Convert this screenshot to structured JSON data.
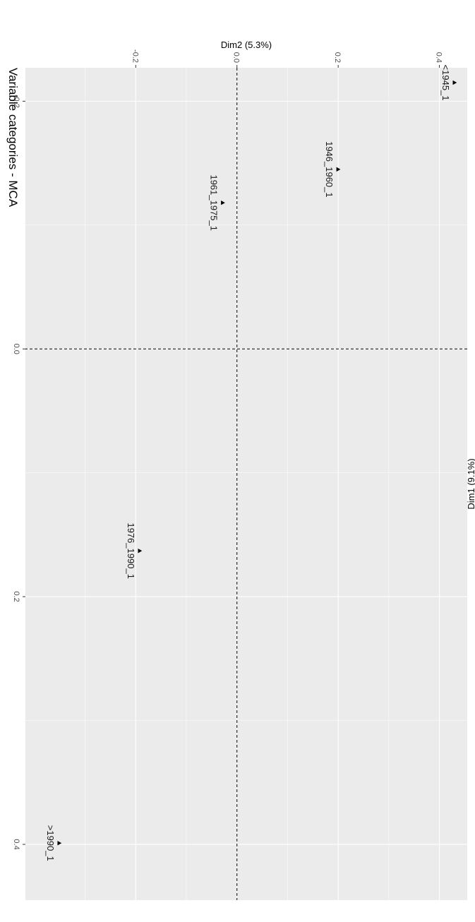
{
  "chart_data": {
    "type": "scatter",
    "title": "Variable categories - MCA",
    "xlabel": "Dim1 (9.1%)",
    "ylabel": "Dim2 (5.3%)",
    "xlim": [
      -0.227,
      0.445
    ],
    "ylim": [
      -0.418,
      0.455
    ],
    "xticks": [
      -0.2,
      0.0,
      0.2,
      0.4
    ],
    "xtick_labels": [
      "-0.2",
      "0.0",
      "0.2",
      "0.4"
    ],
    "yticks": [
      -0.2,
      0.0,
      0.2,
      0.4
    ],
    "ytick_labels": [
      "-0.2",
      "0.0",
      "0.2",
      "0.4"
    ],
    "grid": true,
    "reference_lines": {
      "x": 0,
      "y": 0
    },
    "orientation": "rotated-90-clockwise",
    "points": [
      {
        "label": "<1945_1",
        "x": -0.215,
        "y": 0.43
      },
      {
        "label": "1946_1960_1",
        "x": -0.145,
        "y": 0.2
      },
      {
        "label": "1961_1975_1",
        "x": -0.118,
        "y": -0.028
      },
      {
        "label": "1976_1990_1",
        "x": 0.163,
        "y": -0.192
      },
      {
        "label": ">1990_1",
        "x": 0.399,
        "y": -0.351
      }
    ]
  }
}
